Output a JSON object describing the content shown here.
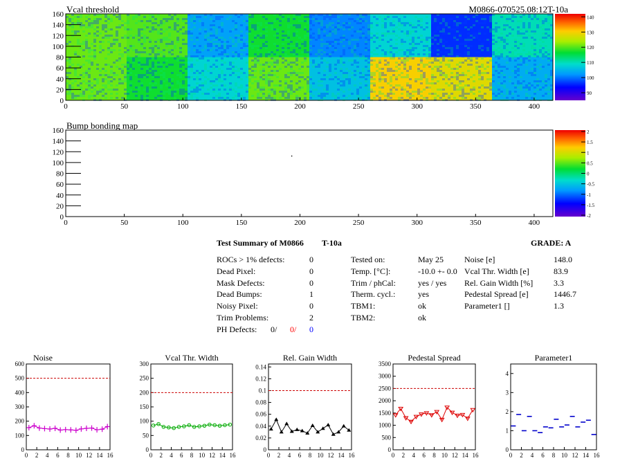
{
  "header": {
    "top_title": "Vcal threshold",
    "module_id": "M0866-070525.08:12T-10a",
    "bump_title": "Bump bonding map"
  },
  "chart_data": [
    {
      "type": "heatmap",
      "title": "Vcal threshold",
      "xlim": [
        0,
        416
      ],
      "ylim": [
        0,
        160
      ],
      "x_ticks": [
        0,
        50,
        100,
        150,
        200,
        250,
        300,
        350,
        400
      ],
      "y_ticks": [
        0,
        20,
        40,
        60,
        80,
        100,
        120,
        140,
        160
      ],
      "color_scale_ticks": [
        90,
        100,
        110,
        120,
        130,
        140
      ],
      "color_range": [
        85,
        142
      ],
      "roc_blocks_top": [
        121,
        120,
        103,
        117,
        101,
        108,
        96,
        110
      ],
      "roc_blocks_bottom": [
        121,
        117,
        108,
        121,
        106,
        130,
        128,
        104
      ]
    },
    {
      "type": "heatmap",
      "title": "Bump bonding map",
      "xlim": [
        0,
        416
      ],
      "ylim": [
        0,
        160
      ],
      "x_ticks": [
        0,
        50,
        100,
        150,
        200,
        250,
        300,
        350,
        400
      ],
      "y_ticks": [
        0,
        20,
        40,
        60,
        80,
        100,
        120,
        140,
        160
      ],
      "color_scale_ticks": [
        "2",
        "1.5",
        "1",
        "0.5",
        "0",
        "-0.5",
        "-1",
        "-1.5",
        "-2"
      ],
      "points": [
        [
          193,
          112
        ]
      ]
    },
    {
      "type": "line",
      "title": "Noise",
      "x": [
        0,
        1,
        2,
        3,
        4,
        5,
        6,
        7,
        8,
        9,
        10,
        11,
        12,
        13,
        14,
        15
      ],
      "values": [
        155,
        168,
        152,
        148,
        145,
        150,
        138,
        141,
        139,
        136,
        146,
        150,
        152,
        140,
        144,
        162
      ],
      "reference": 500,
      "ylim": [
        0,
        600
      ],
      "yticks": [
        "0",
        "100",
        "200",
        "300",
        "400",
        "500",
        "600"
      ],
      "xticks": [
        "0",
        "2",
        "4",
        "6",
        "8",
        "10",
        "12",
        "14",
        "16"
      ],
      "color": "#cc00cc",
      "marker": "cross"
    },
    {
      "type": "line",
      "title": "Vcal Thr. Width",
      "x": [
        0,
        1,
        2,
        3,
        4,
        5,
        6,
        7,
        8,
        9,
        10,
        11,
        12,
        13,
        14,
        15
      ],
      "values": [
        85,
        90,
        80,
        78,
        76,
        80,
        82,
        86,
        80,
        82,
        84,
        88,
        86,
        84,
        86,
        88
      ],
      "reference": 200,
      "ylim": [
        0,
        300
      ],
      "yticks": [
        "0",
        "50",
        "100",
        "150",
        "200",
        "250",
        "300"
      ],
      "xticks": [
        "0",
        "2",
        "4",
        "6",
        "8",
        "10",
        "12",
        "14",
        "16"
      ],
      "color": "#00aa00",
      "marker": "circle"
    },
    {
      "type": "line",
      "title": "Rel. Gain Width",
      "x": [
        0,
        1,
        2,
        3,
        4,
        5,
        6,
        7,
        8,
        9,
        10,
        11,
        12,
        13,
        14,
        15
      ],
      "values": [
        0.035,
        0.051,
        0.03,
        0.044,
        0.031,
        0.034,
        0.032,
        0.028,
        0.041,
        0.03,
        0.036,
        0.042,
        0.026,
        0.03,
        0.04,
        0.033
      ],
      "reference": 0.1,
      "ylim": [
        0,
        0.145
      ],
      "yticks": [
        "0",
        "0.02",
        "0.04",
        "0.06",
        "0.08",
        "0.1",
        "0.12",
        "0.14"
      ],
      "xticks": [
        "0",
        "2",
        "4",
        "6",
        "8",
        "10",
        "12",
        "14",
        "16"
      ],
      "color": "#000000",
      "marker": "triangle"
    },
    {
      "type": "line",
      "title": "Pedestal Spread",
      "x": [
        0,
        1,
        2,
        3,
        4,
        5,
        6,
        7,
        8,
        9,
        10,
        11,
        12,
        13,
        14,
        15
      ],
      "values": [
        1420,
        1680,
        1300,
        1150,
        1350,
        1450,
        1500,
        1420,
        1550,
        1230,
        1730,
        1520,
        1400,
        1430,
        1280,
        1630
      ],
      "reference": 2500,
      "ylim": [
        0,
        3500
      ],
      "yticks": [
        "0",
        "500",
        "1000",
        "1500",
        "2000",
        "2500",
        "3000",
        "3500"
      ],
      "xticks": [
        "0",
        "2",
        "4",
        "6",
        "8",
        "10",
        "12",
        "14",
        "16"
      ],
      "color": "#dd0000",
      "marker": "triangle-down"
    },
    {
      "type": "scatter",
      "title": "Parameter1",
      "x": [
        0,
        1,
        2,
        3,
        4,
        5,
        6,
        7,
        8,
        9,
        10,
        11,
        12,
        13,
        14,
        15
      ],
      "values": [
        1.25,
        1.85,
        1.0,
        1.75,
        1.0,
        0.9,
        1.2,
        1.15,
        1.6,
        1.2,
        1.3,
        1.75,
        1.2,
        1.45,
        1.55,
        0.8
      ],
      "ylim": [
        0,
        4.5
      ],
      "yticks": [
        "0",
        "1",
        "2",
        "3",
        "4"
      ],
      "xticks": [
        "0",
        "2",
        "4",
        "6",
        "8",
        "10",
        "12",
        "14",
        "16"
      ],
      "color": "#0000cc",
      "marker": "dash"
    }
  ],
  "summary": {
    "title": "Test Summary of M0866",
    "temp_tag": "T-10a",
    "grade_label": "GRADE:  A",
    "left_rows": [
      {
        "label": "ROCs > 1% defects:",
        "value": "0"
      },
      {
        "label": "Dead Pixel:",
        "value": "0"
      },
      {
        "label": "Mask Defects:",
        "value": "0"
      },
      {
        "label": "Dead Bumps:",
        "value": "1"
      },
      {
        "label": "Noisy Pixel:",
        "value": "0"
      },
      {
        "label": "Trim Problems:",
        "value": "2"
      }
    ],
    "ph_defects": {
      "label": "PH Defects:",
      "v1": "0/",
      "v2": "0/",
      "v3": "0",
      "c2": "#ff0000",
      "c3": "#0000ff"
    },
    "mid_rows": [
      {
        "label": "Tested on:",
        "value": "May 25"
      },
      {
        "label": "Temp. [°C]:",
        "value": "-10.0 +- 0.0"
      },
      {
        "label": "Trim / phCal:",
        "value": "yes / yes"
      },
      {
        "label": "Therm. cycl.:",
        "value": "yes"
      },
      {
        "label": "TBM1:",
        "value": "ok"
      },
      {
        "label": "TBM2:",
        "value": "ok"
      }
    ],
    "right_rows": [
      {
        "label": "Noise [e]",
        "value": "148.0"
      },
      {
        "label": "Vcal Thr. Width [e]",
        "value": "83.9"
      },
      {
        "label": "Rel. Gain Width [%]",
        "value": "3.3"
      },
      {
        "label": "Pedestal Spread [e]",
        "value": "1446.7"
      },
      {
        "label": "Parameter1 []",
        "value": "1.3"
      }
    ]
  },
  "colors": {
    "reference_line": "#cc0000"
  }
}
